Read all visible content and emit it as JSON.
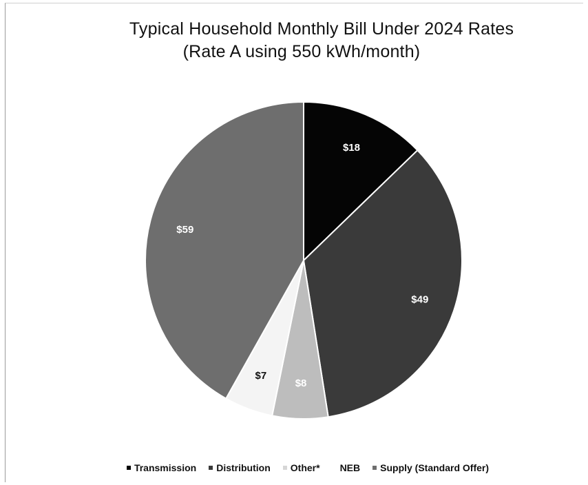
{
  "chart_data": {
    "type": "pie",
    "title": "Typical Household Monthly Bill Under 2024 Rates",
    "subtitle": "(Rate A using 550 kWh/month)",
    "slices": [
      {
        "name": "Transmission",
        "value": 18,
        "label": "$18",
        "color": "#050505",
        "label_color": "#ffffff"
      },
      {
        "name": "Distribution",
        "value": 49,
        "label": "$49",
        "color": "#3a3a3a",
        "label_color": "#ffffff"
      },
      {
        "name": "Other*",
        "value": 8,
        "label": "$8",
        "color": "#bdbdbd",
        "label_color": "#ffffff"
      },
      {
        "name": "NEB",
        "value": 7,
        "label": "$7",
        "color": "#f4f4f4",
        "label_color": "#111111"
      },
      {
        "name": "Supply (Standard Offer)",
        "value": 59,
        "label": "$59",
        "color": "#6e6e6e",
        "label_color": "#ffffff"
      }
    ],
    "legend_position": "bottom"
  }
}
